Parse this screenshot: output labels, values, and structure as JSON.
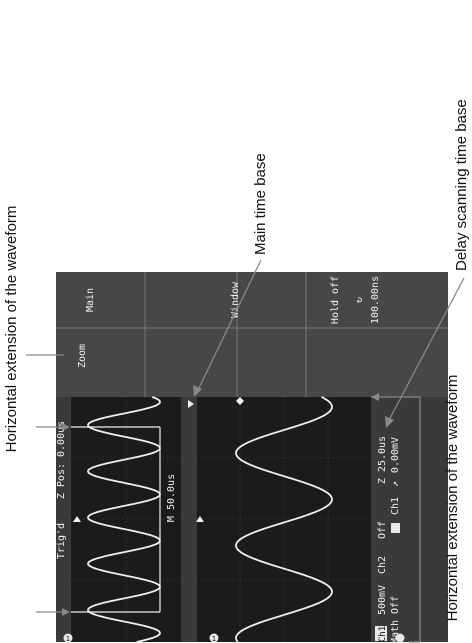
{
  "annotations": {
    "main_time_base": "Main time base",
    "delay_time_base": "Delay scanning time base",
    "hext_top": "Horizontal extension of the waveform",
    "hext_bottom": "Horizontal extension of the waveform"
  },
  "scope": {
    "menu": {
      "title": "Zoom",
      "main": "Main",
      "window": "Window",
      "holdoff_label": "Hold off",
      "holdoff_value": "100.00ns"
    },
    "top_bar": {
      "status": "Trig'd",
      "zpos": "Z Pos: 0.00us"
    },
    "window_label": "M 50.0us",
    "bottom_bar": {
      "ch1": "Ch1",
      "ch1_scale": "500mV",
      "math": "Math Off",
      "ch2": "Ch2",
      "ch2_state": "Off",
      "trig_src": "Ch1",
      "zoom_time": "Z 25.0us",
      "trig_level": "0.00mV"
    },
    "marker_1": "1",
    "marker_2": "1"
  },
  "colors": {
    "screen_bg": "#1b1b1b",
    "panel_bg": "#4a4a4a",
    "bar_bg": "#3a3a3a",
    "waveform": "#f0f0f0",
    "grid": "#6a6a6a"
  }
}
